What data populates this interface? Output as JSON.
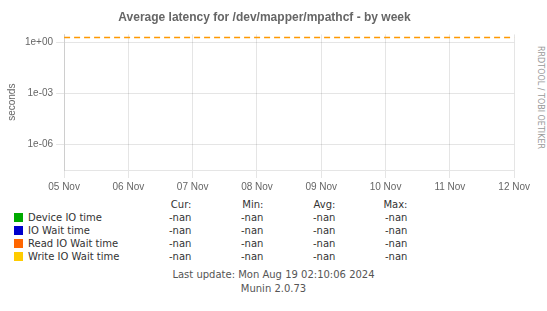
{
  "chart_data": {
    "type": "line",
    "title": "Average latency for /dev/mapper/mpathcf - by week",
    "y_label": "seconds",
    "categories": [
      "05 Nov",
      "06 Nov",
      "07 Nov",
      "08 Nov",
      "09 Nov",
      "10 Nov",
      "11 Nov",
      "12 Nov"
    ],
    "series": [
      {
        "name": "Device IO time",
        "color": "#00aa00",
        "values": [
          null,
          null,
          null,
          null,
          null,
          null,
          null,
          null
        ]
      },
      {
        "name": "IO Wait time",
        "color": "#0000cc",
        "values": [
          null,
          null,
          null,
          null,
          null,
          null,
          null,
          null
        ]
      },
      {
        "name": "Read IO Wait time",
        "color": "#ff6600",
        "values": [
          null,
          null,
          null,
          null,
          null,
          null,
          null,
          null
        ]
      },
      {
        "name": "Write IO Wait time",
        "color": "#ffcc00",
        "values": [
          null,
          null,
          null,
          null,
          null,
          null,
          null,
          null
        ]
      }
    ],
    "log": "y",
    "ylim": [
      3e-08,
      3.0
    ],
    "yticks": [
      {
        "value": 1e-06,
        "label": "1e-06"
      },
      {
        "value": 0.001,
        "label": "1e-03"
      },
      {
        "value": 1.0,
        "label": "1e+00"
      }
    ],
    "grid": true,
    "legend": "bottom",
    "annotations": [
      {
        "type": "hline",
        "y": 2.0,
        "color": "#ff9900",
        "line_style": "dashed"
      }
    ],
    "table": {
      "columns": [
        "Cur:",
        "Min:",
        "Avg:",
        "Max:"
      ],
      "rows": [
        [
          "-nan",
          "-nan",
          "-nan",
          "-nan"
        ],
        [
          "-nan",
          "-nan",
          "-nan",
          "-nan"
        ],
        [
          "-nan",
          "-nan",
          "-nan",
          "-nan"
        ],
        [
          "-nan",
          "-nan",
          "-nan",
          "-nan"
        ]
      ]
    },
    "side_text": "RRDTOOL / TOBI OETIKER",
    "footer": [
      "Last update: Mon Aug 19 02:10:06 2024",
      "Munin 2.0.73"
    ]
  }
}
